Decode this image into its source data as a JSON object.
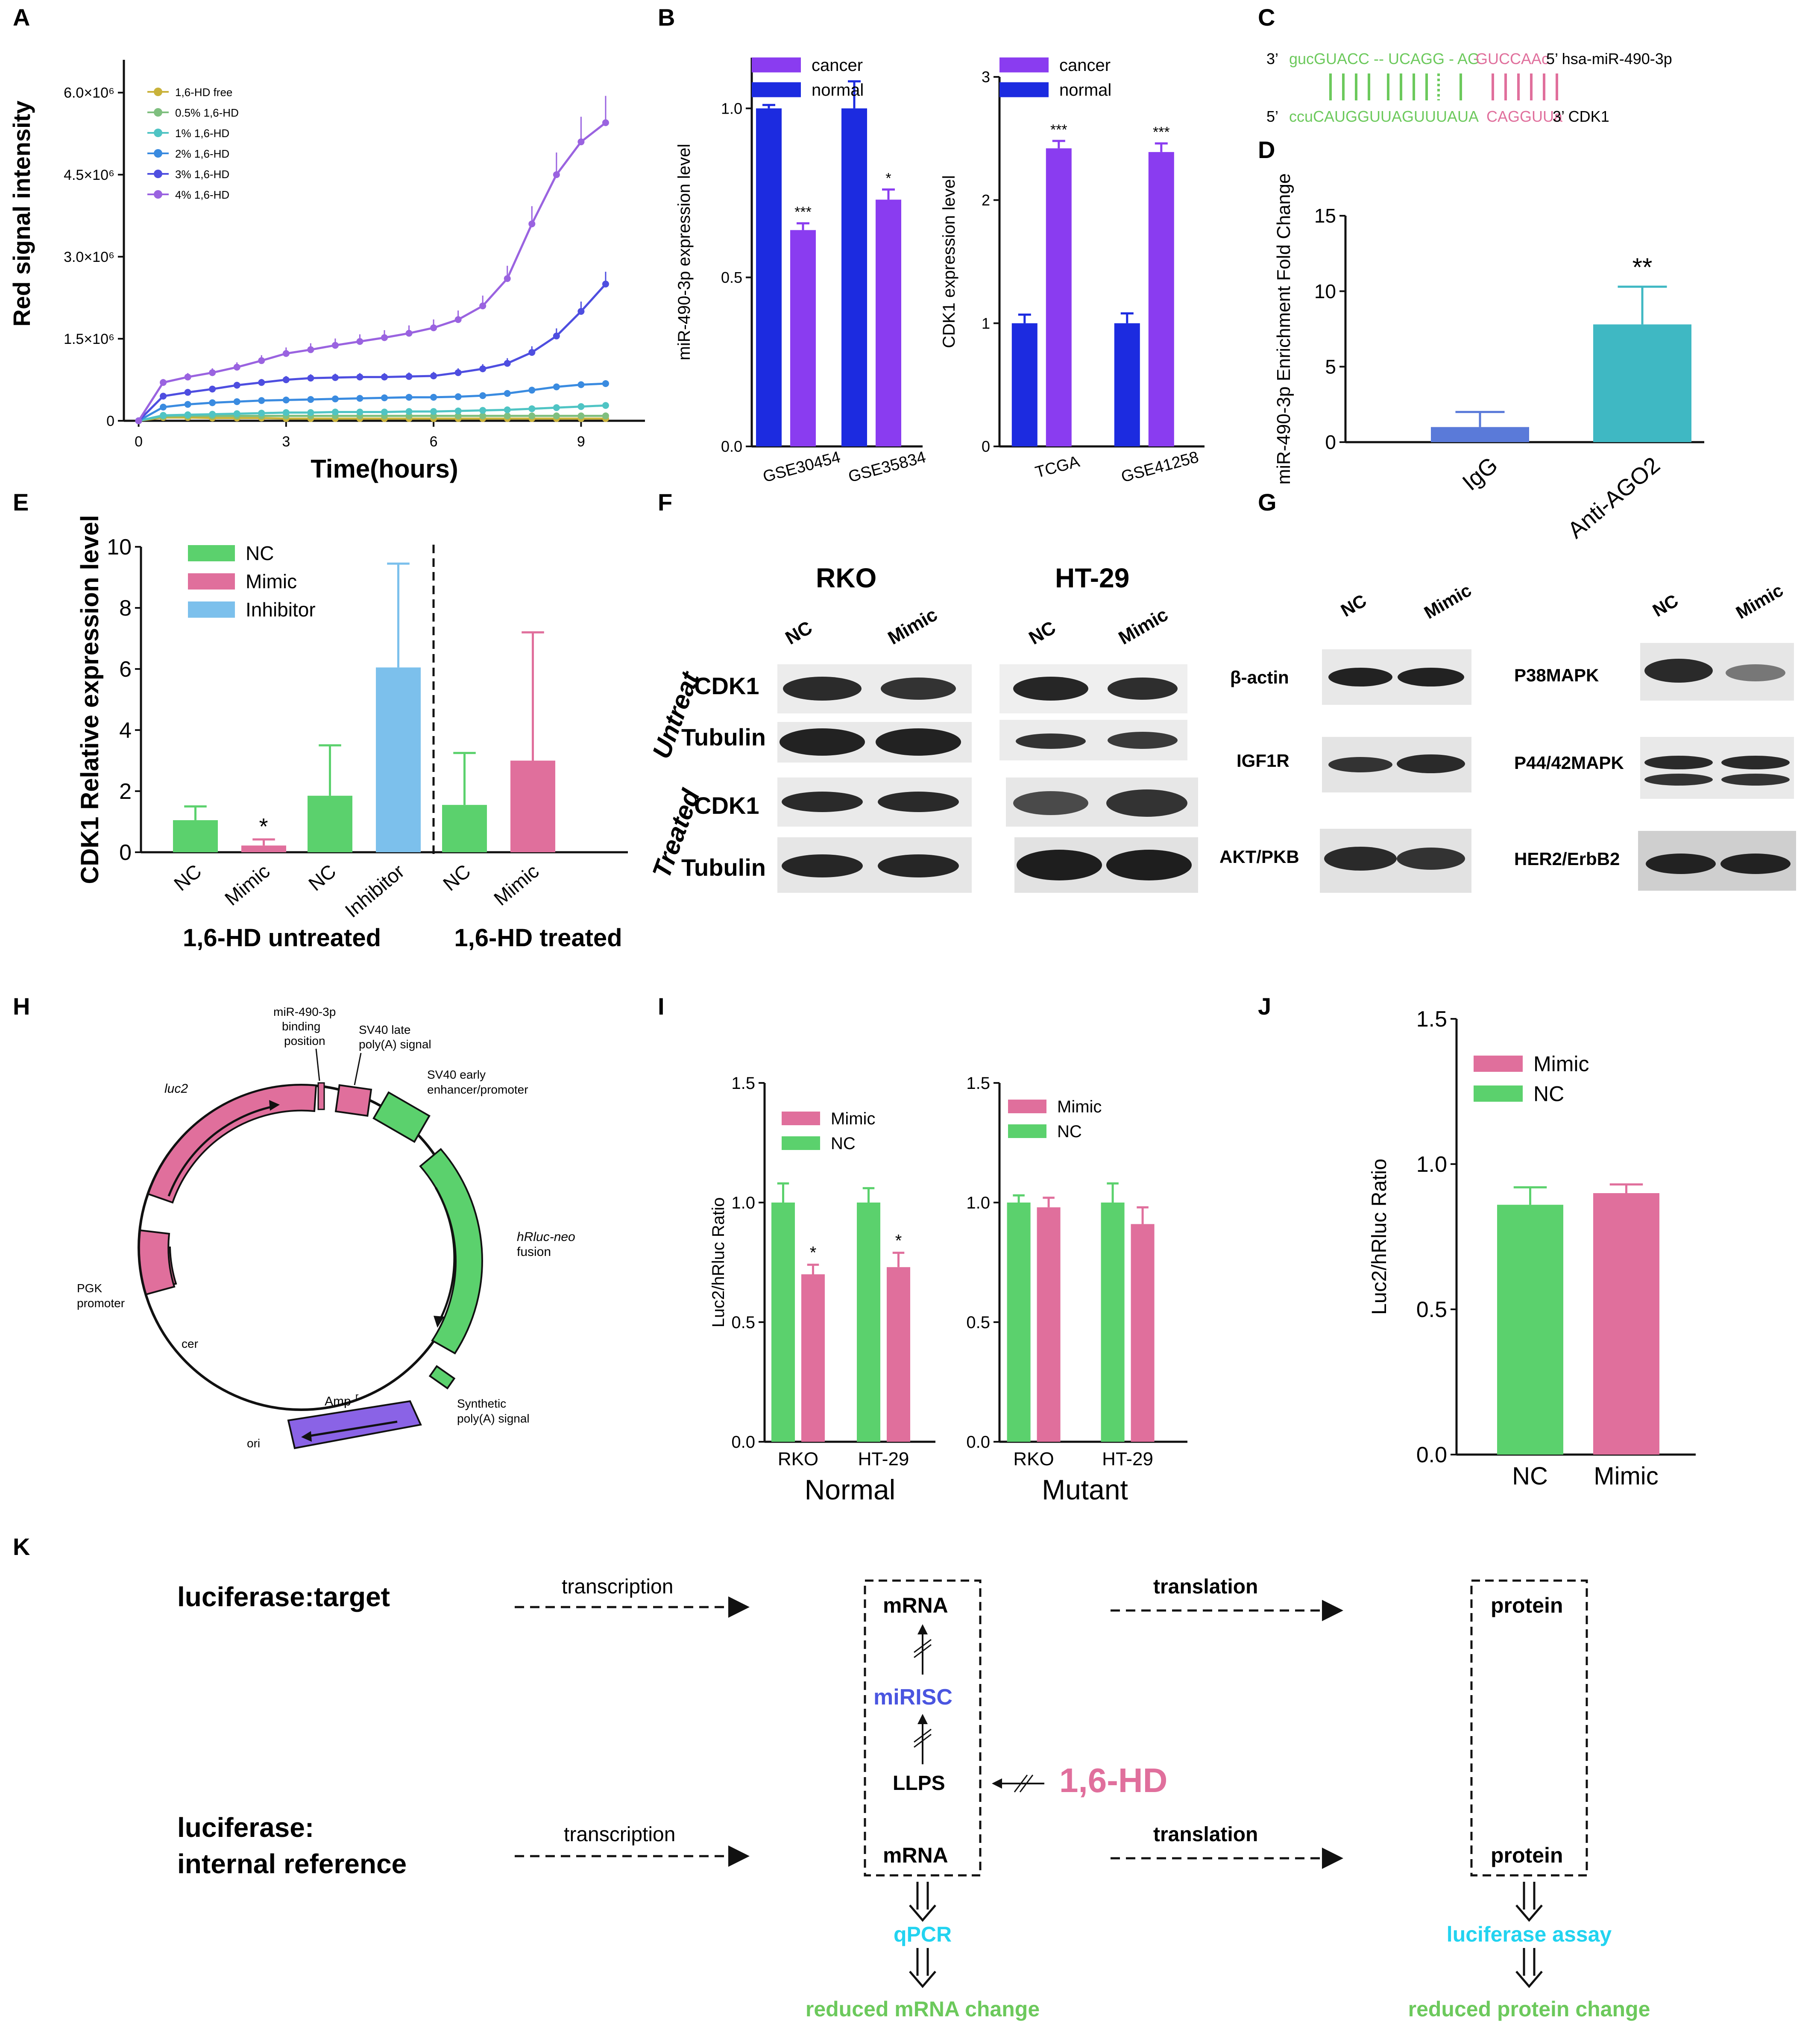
{
  "figure": {
    "panels": [
      "A",
      "B",
      "C",
      "D",
      "E",
      "F",
      "G",
      "H",
      "I",
      "J",
      "K"
    ]
  },
  "colors": {
    "cancer": "#8a3cf0",
    "normal": "#1c2be0",
    "mimic": "#e06f9c",
    "nc": "#5bd16d",
    "inhibitor": "#7cc0ec",
    "igg": "#5a7ad9",
    "ago2": "#3fb8c3",
    "cyan_text": "#22d3f0",
    "green_text": "#6cc95c",
    "mirisc": "#4a55e0",
    "hd_pink": "#e06f9c"
  },
  "chart_data": [
    {
      "id": "A",
      "type": "line",
      "xlabel": "Time(hours)",
      "ylabel": "Red signal intensity",
      "xlim": [
        -0.3,
        10.3
      ],
      "ylim": [
        0,
        6600000
      ],
      "x_ticks": [
        "0",
        "3",
        "6",
        "9"
      ],
      "x_tick_values": [
        0,
        3,
        6,
        9
      ],
      "y_ticks": [
        "0",
        "1.5×10⁶",
        "3.0×10⁶",
        "4.5×10⁶",
        "6.0×10⁶"
      ],
      "y_tick_values": [
        0,
        1500000,
        3000000,
        4500000,
        6000000
      ],
      "series": [
        {
          "name": "1,6-HD free",
          "color": "#c9b23a",
          "x": [
            0,
            0.5,
            1,
            1.5,
            2,
            2.5,
            3,
            3.5,
            4,
            4.5,
            5,
            5.5,
            6,
            6.5,
            7,
            7.5,
            8,
            8.5,
            9,
            9.5
          ],
          "values": [
            0,
            60000,
            60000,
            50000,
            50000,
            50000,
            40000,
            40000,
            40000,
            40000,
            40000,
            40000,
            40000,
            40000,
            40000,
            40000,
            40000,
            40000,
            40000,
            40000
          ]
        },
        {
          "name": "0.5% 1,6-HD",
          "color": "#7fbf7f",
          "x": [
            0,
            0.5,
            1,
            1.5,
            2,
            2.5,
            3,
            3.5,
            4,
            4.5,
            5,
            5.5,
            6,
            6.5,
            7,
            7.5,
            8,
            8.5,
            9,
            9.5
          ],
          "values": [
            0,
            80000,
            90000,
            90000,
            90000,
            90000,
            90000,
            90000,
            90000,
            90000,
            90000,
            90000,
            90000,
            90000,
            90000,
            90000,
            90000,
            90000,
            90000,
            90000
          ]
        },
        {
          "name": "1% 1,6-HD",
          "color": "#4fc4c4",
          "x": [
            0,
            0.5,
            1,
            1.5,
            2,
            2.5,
            3,
            3.5,
            4,
            4.5,
            5,
            5.5,
            6,
            6.5,
            7,
            7.5,
            8,
            8.5,
            9,
            9.5
          ],
          "values": [
            0,
            100000,
            110000,
            120000,
            130000,
            140000,
            150000,
            150000,
            160000,
            160000,
            160000,
            170000,
            170000,
            180000,
            190000,
            200000,
            220000,
            240000,
            260000,
            280000
          ]
        },
        {
          "name": "2% 1,6-HD",
          "color": "#3a8be0",
          "x": [
            0,
            0.5,
            1,
            1.5,
            2,
            2.5,
            3,
            3.5,
            4,
            4.5,
            5,
            5.5,
            6,
            6.5,
            7,
            7.5,
            8,
            8.5,
            9,
            9.5
          ],
          "values": [
            0,
            250000,
            300000,
            330000,
            350000,
            370000,
            380000,
            390000,
            400000,
            410000,
            420000,
            430000,
            430000,
            440000,
            460000,
            500000,
            560000,
            620000,
            660000,
            680000
          ]
        },
        {
          "name": "3% 1,6-HD",
          "color": "#4e4ee0",
          "x": [
            0,
            0.5,
            1,
            1.5,
            2,
            2.5,
            3,
            3.5,
            4,
            4.5,
            5,
            5.5,
            6,
            6.5,
            7,
            7.5,
            8,
            8.5,
            9,
            9.5
          ],
          "values": [
            0,
            450000,
            520000,
            580000,
            650000,
            700000,
            750000,
            780000,
            790000,
            800000,
            800000,
            810000,
            820000,
            880000,
            950000,
            1050000,
            1250000,
            1550000,
            2000000,
            2500000
          ]
        },
        {
          "name": "4% 1,6-HD",
          "color": "#9a63e0",
          "x": [
            0,
            0.5,
            1,
            1.5,
            2,
            2.5,
            3,
            3.5,
            4,
            4.5,
            5,
            5.5,
            6,
            6.5,
            7,
            7.5,
            8,
            8.5,
            9,
            9.5
          ],
          "values": [
            0,
            700000,
            800000,
            880000,
            980000,
            1100000,
            1230000,
            1300000,
            1380000,
            1450000,
            1520000,
            1600000,
            1700000,
            1850000,
            2100000,
            2600000,
            3600000,
            4500000,
            5100000,
            5450000
          ]
        }
      ]
    },
    {
      "id": "B1",
      "type": "bar",
      "ylabel": "miR-490-3p expression level",
      "ylim": [
        0,
        1.15
      ],
      "y_ticks": [
        "0.0",
        "0.5",
        "1.0"
      ],
      "y_tick_values": [
        0,
        0.5,
        1.0
      ],
      "categories": [
        "GSE30454",
        "GSE35834"
      ],
      "series": [
        {
          "name": "normal",
          "values": [
            1.0,
            1.0
          ],
          "err": [
            0.01,
            0.08
          ]
        },
        {
          "name": "cancer",
          "values": [
            0.64,
            0.73
          ],
          "err": [
            0.02,
            0.03
          ]
        }
      ],
      "legend": [
        "cancer",
        "normal"
      ],
      "annotations": [
        "***",
        "*"
      ]
    },
    {
      "id": "B2",
      "type": "bar",
      "ylabel": "CDK1 expression level",
      "ylim": [
        0,
        3.0
      ],
      "y_ticks": [
        "0",
        "1",
        "2",
        "3"
      ],
      "y_tick_values": [
        0,
        1,
        2,
        3
      ],
      "categories": [
        "TCGA",
        "GSE41258"
      ],
      "series": [
        {
          "name": "normal",
          "values": [
            1.0,
            1.0
          ],
          "err": [
            0.07,
            0.08
          ]
        },
        {
          "name": "cancer",
          "values": [
            2.42,
            2.39
          ],
          "err": [
            0.06,
            0.07
          ]
        }
      ],
      "legend": [
        "cancer",
        "normal"
      ],
      "annotations": [
        "***",
        "***"
      ]
    },
    {
      "id": "D",
      "type": "bar",
      "ylabel": "miR-490-3p Enrichment Fold Change",
      "ylim": [
        0,
        15
      ],
      "y_ticks": [
        "0",
        "5",
        "10",
        "15"
      ],
      "y_tick_values": [
        0,
        5,
        10,
        15
      ],
      "categories": [
        "IgG",
        "Anti-AGO2"
      ],
      "values": [
        1.0,
        7.8
      ],
      "err": [
        1.0,
        2.5
      ],
      "annotations": [
        "**"
      ]
    },
    {
      "id": "E",
      "type": "bar",
      "ylabel": "CDK1 Relative expression level",
      "ylim": [
        0,
        10
      ],
      "y_ticks": [
        "0",
        "2",
        "4",
        "6",
        "8",
        "10"
      ],
      "y_tick_values": [
        0,
        2,
        4,
        6,
        8,
        10
      ],
      "categories": [
        "NC",
        "Mimic",
        "NC",
        "Inhibitor",
        "NC",
        "Mimic"
      ],
      "values": [
        1.05,
        0.22,
        1.85,
        6.05,
        1.55,
        3.0
      ],
      "err": [
        0.45,
        0.2,
        1.65,
        3.4,
        1.7,
        4.2
      ],
      "groups": [
        "1,6-HD untreated",
        "1,6-HD treated"
      ],
      "legend": [
        "NC",
        "Mimic",
        "Inhibitor"
      ],
      "annotations": [
        "*"
      ]
    },
    {
      "id": "I1",
      "type": "bar",
      "ylabel": "Luc2/hRluc Ratio",
      "title": "Normal",
      "ylim": [
        0,
        1.5
      ],
      "y_ticks": [
        "0.0",
        "0.5",
        "1.0",
        "1.5"
      ],
      "y_tick_values": [
        0,
        0.5,
        1.0,
        1.5
      ],
      "categories": [
        "RKO",
        "HT-29"
      ],
      "series": [
        {
          "name": "NC",
          "values": [
            1.0,
            1.0
          ],
          "err": [
            0.08,
            0.06
          ]
        },
        {
          "name": "Mimic",
          "values": [
            0.7,
            0.73
          ],
          "err": [
            0.04,
            0.06
          ]
        }
      ],
      "legend": [
        "Mimic",
        "NC"
      ],
      "annotations": [
        "*",
        "*"
      ]
    },
    {
      "id": "I2",
      "type": "bar",
      "title": "Mutant",
      "ylim": [
        0,
        1.5
      ],
      "y_ticks": [
        "0.0",
        "0.5",
        "1.0",
        "1.5"
      ],
      "y_tick_values": [
        0,
        0.5,
        1.0,
        1.5
      ],
      "categories": [
        "RKO",
        "HT-29"
      ],
      "series": [
        {
          "name": "NC",
          "values": [
            1.0,
            1.0
          ],
          "err": [
            0.03,
            0.08
          ]
        },
        {
          "name": "Mimic",
          "values": [
            0.98,
            0.91
          ],
          "err": [
            0.04,
            0.07
          ]
        }
      ],
      "legend": [
        "Mimic",
        "NC"
      ]
    },
    {
      "id": "J",
      "type": "bar",
      "ylabel": "Luc2/hRluc Ratio",
      "ylim": [
        0,
        1.5
      ],
      "y_ticks": [
        "0.0",
        "0.5",
        "1.0",
        "1.5"
      ],
      "y_tick_values": [
        0,
        0.5,
        1.0,
        1.5
      ],
      "categories": [
        "NC",
        "Mimic"
      ],
      "values": [
        0.86,
        0.9
      ],
      "err": [
        0.06,
        0.03
      ],
      "legend": [
        "Mimic",
        "NC"
      ]
    }
  ],
  "panelC": {
    "line1_prefix": "3’",
    "line1_green": "gucGUACC -- UCAGG - AG",
    "line1_pink": "GUCCAAc",
    "line1_suffix": "5’ hsa-miR-490-3p",
    "line2_prefix": "5’",
    "line2_green": "ccuCAUGGUUAGUUUAUA",
    "line2_pink": "CAGGUUa",
    "line2_suffix": "3’ CDK1"
  },
  "panelF": {
    "cell1": "RKO",
    "cell2": "HT-29",
    "lanes": [
      "NC",
      "Mimic",
      "NC",
      "Mimic"
    ],
    "conditions": [
      "Untreat",
      "Treated"
    ],
    "proteins": [
      "CDK1",
      "Tubulin",
      "CDK1",
      "Tubulin"
    ]
  },
  "panelG": {
    "lanes": [
      "NC",
      "Mimic",
      "NC",
      "Mimic"
    ],
    "left_proteins": [
      "β-actin",
      "IGF1R",
      "AKT/PKB"
    ],
    "right_proteins": [
      "P38MAPK",
      "P44/42MAPK",
      "HER2/ErbB2"
    ]
  },
  "panelH": {
    "mir_site": [
      "miR-490-3p",
      "binding",
      "position"
    ],
    "sv40_late": [
      "SV40 late",
      "poly(A) signal"
    ],
    "sv40_early": [
      "SV40 early",
      "enhancer/promoter"
    ],
    "luc2": "luc2",
    "hrluc": [
      "hRluc-neo",
      "fusion"
    ],
    "pgk": [
      "PGK",
      "promoter"
    ],
    "cer": "cer",
    "ampr": "Amp",
    "ampr_sup": "r",
    "ori": "ori",
    "synth": [
      "Synthetic",
      "poly(A) signal"
    ]
  },
  "panelK": {
    "row1_label": "luciferase:target",
    "row2_label": [
      "luciferase:",
      "internal reference"
    ],
    "transcription": "transcription",
    "translation": "translation",
    "mrna": "mRNA",
    "protein": "protein",
    "mirisc": "miRISC",
    "llps": "LLPS",
    "hd": "1,6-HD",
    "qpcr": "qPCR",
    "luciferase_assay": "luciferase assay",
    "reduced_mrna": "reduced mRNA change",
    "reduced_protein": "reduced protein change"
  }
}
